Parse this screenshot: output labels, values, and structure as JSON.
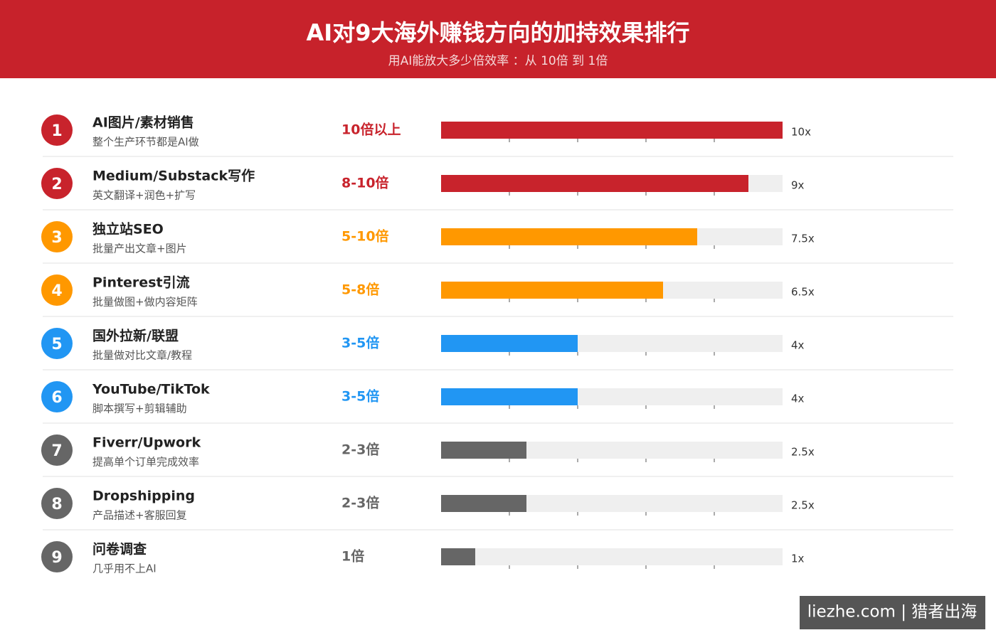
{
  "chart_data": {
    "type": "bar",
    "title": "AI对9大海外赚钱方向的加持效果排行",
    "subtitle": "用AI能放大多少倍效率 ：从 10倍 到 1倍",
    "ranks": [
      1,
      2,
      3,
      4,
      5,
      6,
      7,
      8,
      9
    ],
    "categories": [
      "AI图片/素材销售",
      "Medium/Substack写作",
      "独立站SEO",
      "Pinterest引流",
      "国外拉新/联盟",
      "YouTube/TikTok",
      "Fiverr/Upwork",
      "Dropshipping",
      "问卷调查"
    ],
    "descriptions": [
      "整个生产环节都是AI做",
      "英文翻译+润色+扩写",
      "批量产出文章+图片",
      "批量做图+做内容矩阵",
      "批量做对比文章/教程",
      "脚本撰写+剪辑辅助",
      "提高单个订单完成效率",
      "产品描述+客服回复",
      "几乎用不上AI"
    ],
    "ranges": [
      "10倍以上",
      "8-10倍",
      "5-10倍",
      "5-8倍",
      "3-5倍",
      "3-5倍",
      "2-3倍",
      "2-3倍",
      "1倍"
    ],
    "values": [
      10,
      9,
      7.5,
      6.5,
      4,
      4,
      2.5,
      2.5,
      1
    ],
    "value_labels": [
      "10x",
      "9x",
      "7.5x",
      "6.5x",
      "4x",
      "4x",
      "2.5x",
      "2.5x",
      "1x"
    ],
    "colors": [
      "#c8232c",
      "#c8232c",
      "#ff9800",
      "#ff9800",
      "#2196f3",
      "#2196f3",
      "#666666",
      "#666666",
      "#666666"
    ],
    "xlim": [
      0,
      10
    ],
    "xticks": [
      2,
      4,
      6,
      8
    ],
    "watermark": "liezhe.com | 猎者出海"
  }
}
